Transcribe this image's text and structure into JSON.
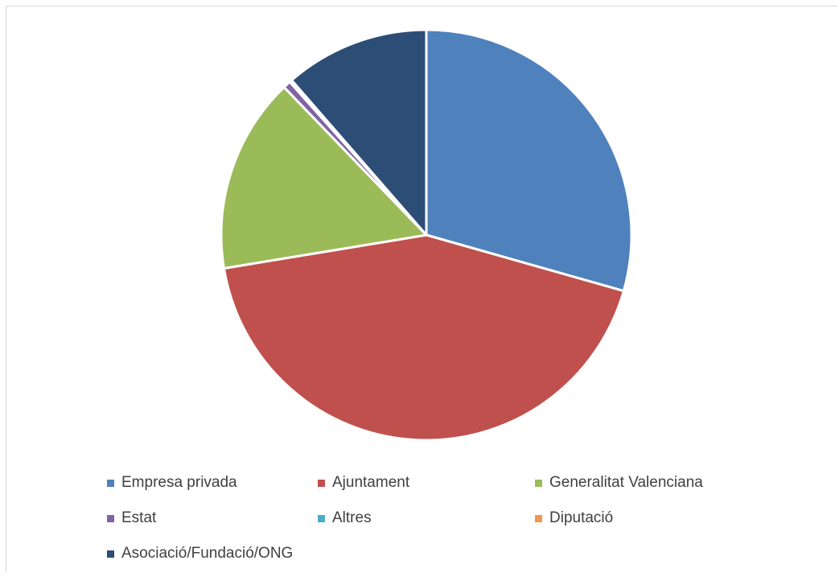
{
  "chart_data": {
    "type": "pie",
    "title": "",
    "start_angle_deg": 0,
    "direction": "clockwise",
    "legend_position": "bottom",
    "slices": [
      {
        "label": "Empresa privada",
        "value": 29.4,
        "color": "#4f81bd"
      },
      {
        "label": "Ajuntament",
        "value": 43.0,
        "color": "#c0504d"
      },
      {
        "label": "Generalitat Valenciana",
        "value": 15.4,
        "color": "#9bbb59"
      },
      {
        "label": "Estat",
        "value": 0.6,
        "color": "#8064a2"
      },
      {
        "label": "Altres",
        "value": 0.2,
        "color": "#4bacc6"
      },
      {
        "label": "Diputació",
        "value": 0.0,
        "color": "#f79646"
      },
      {
        "label": "Asociació/Fundació/ONG",
        "value": 11.4,
        "color": "#2c4d75"
      }
    ]
  }
}
